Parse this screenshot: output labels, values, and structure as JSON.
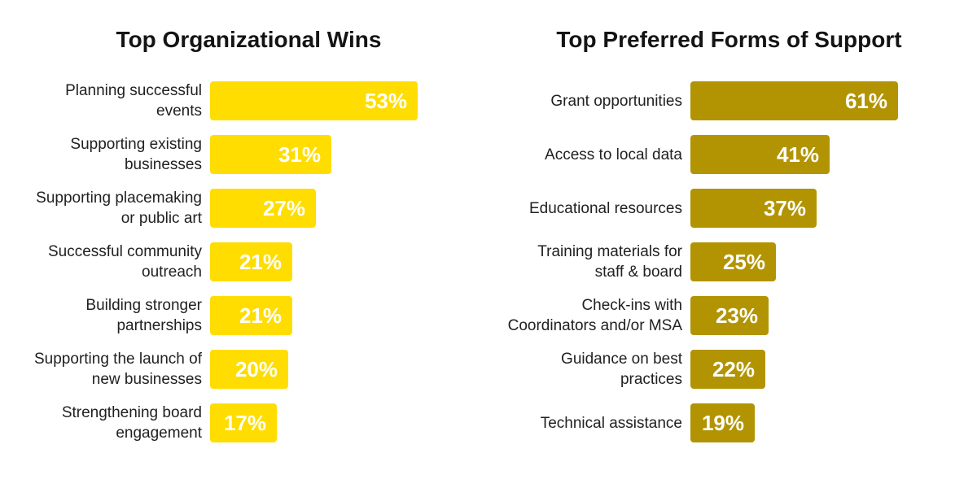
{
  "page": {
    "background_color": "#ffffff"
  },
  "chart_data": [
    {
      "type": "bar",
      "orientation": "horizontal",
      "title": "Top Organizational Wins",
      "unit": "%",
      "axis": "none",
      "grid": false,
      "legend": "none",
      "data_label_position": "inside-end",
      "bar_color": "#FFDD00",
      "value_text_color": "#FFFFFF",
      "xlim": [
        0,
        53
      ],
      "categories": [
        "Planning successful events",
        "Supporting existing businesses",
        "Supporting placemaking or public art",
        "Successful community outreach",
        "Building stronger partnerships",
        "Supporting the launch of new businesses",
        "Strengthening board engagement"
      ],
      "categories_wrapped": [
        "Planning successful\nevents",
        "Supporting existing\nbusinesses",
        "Supporting placemaking\nor public art",
        "Successful community\noutreach",
        "Building stronger\npartnerships",
        "Supporting the launch of\nnew businesses",
        "Strengthening board\nengagement"
      ],
      "values": [
        53,
        31,
        27,
        21,
        21,
        20,
        17
      ],
      "value_labels": [
        "53%",
        "31%",
        "27%",
        "21%",
        "21%",
        "20%",
        "17%"
      ]
    },
    {
      "type": "bar",
      "orientation": "horizontal",
      "title": "Top Preferred Forms of Support",
      "unit": "%",
      "axis": "none",
      "grid": false,
      "legend": "none",
      "data_label_position": "inside-end",
      "bar_color": "#B29403",
      "value_text_color": "#FFFFFF",
      "xlim": [
        0,
        61
      ],
      "categories": [
        "Grant opportunities",
        "Access to local data",
        "Educational resources",
        "Training materials for staff & board",
        "Check-ins with Coordinators and/or MSA",
        "Guidance on best practices",
        "Technical assistance"
      ],
      "categories_wrapped": [
        "Grant opportunities",
        "Access to local data",
        "Educational resources",
        "Training materials for\nstaff & board",
        "Check-ins with\nCoordinators and/or MSA",
        "Guidance on best\npractices",
        "Technical assistance"
      ],
      "values": [
        61,
        41,
        37,
        25,
        23,
        22,
        19
      ],
      "value_labels": [
        "61%",
        "41%",
        "37%",
        "25%",
        "23%",
        "22%",
        "19%"
      ]
    }
  ]
}
